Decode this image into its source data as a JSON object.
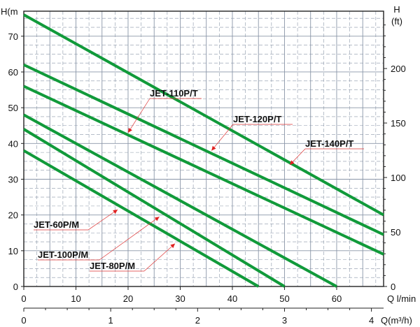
{
  "chart_data": {
    "type": "line",
    "title": "",
    "x": [
      0,
      10,
      20,
      30,
      40,
      50,
      60
    ],
    "xlabel": "Q l/min",
    "xlim": [
      0,
      69
    ],
    "x2_ticks": [
      0,
      1,
      2,
      3,
      4
    ],
    "x2label": "Q(m³/h)",
    "ylabel": "H(m",
    "ylim": [
      0,
      77
    ],
    "y_ticks": [
      0,
      10,
      20,
      30,
      40,
      50,
      60,
      70
    ],
    "y2label_line1": "H",
    "y2label_line2": "(ft)",
    "y2_ticks": [
      0,
      50,
      100,
      150,
      200
    ],
    "grid": true,
    "line_color": "#119a3a",
    "series": [
      {
        "name": "JET-60P/M",
        "points": [
          [
            0,
            38
          ],
          [
            45,
            0
          ]
        ]
      },
      {
        "name": "JET-80P/M",
        "points": [
          [
            0,
            44
          ],
          [
            50,
            0
          ]
        ]
      },
      {
        "name": "JET-100P/M",
        "points": [
          [
            0,
            48
          ],
          [
            60,
            0
          ]
        ]
      },
      {
        "name": "JET-110P/T",
        "points": [
          [
            0,
            56
          ],
          [
            69,
            9
          ]
        ]
      },
      {
        "name": "JET-120P/T",
        "points": [
          [
            0,
            62
          ],
          [
            69,
            14.5
          ]
        ]
      },
      {
        "name": "JET-140P/T",
        "points": [
          [
            0,
            76
          ],
          [
            69,
            20
          ]
        ]
      }
    ],
    "labels": [
      {
        "text": "JET-110P/T",
        "ax": 20,
        "ay": 43
      },
      {
        "text": "JET-120P/T",
        "ax": 36,
        "ay": 38
      },
      {
        "text": "JET-140P/T",
        "ax": 51,
        "ay": 34
      },
      {
        "text": "JET-60P/M",
        "ax": 18,
        "ay": 21.5
      },
      {
        "text": "JET-100P/M",
        "ax": 26,
        "ay": 19.5
      },
      {
        "text": "JET-80P/M",
        "ax": 29,
        "ay": 12
      }
    ]
  }
}
